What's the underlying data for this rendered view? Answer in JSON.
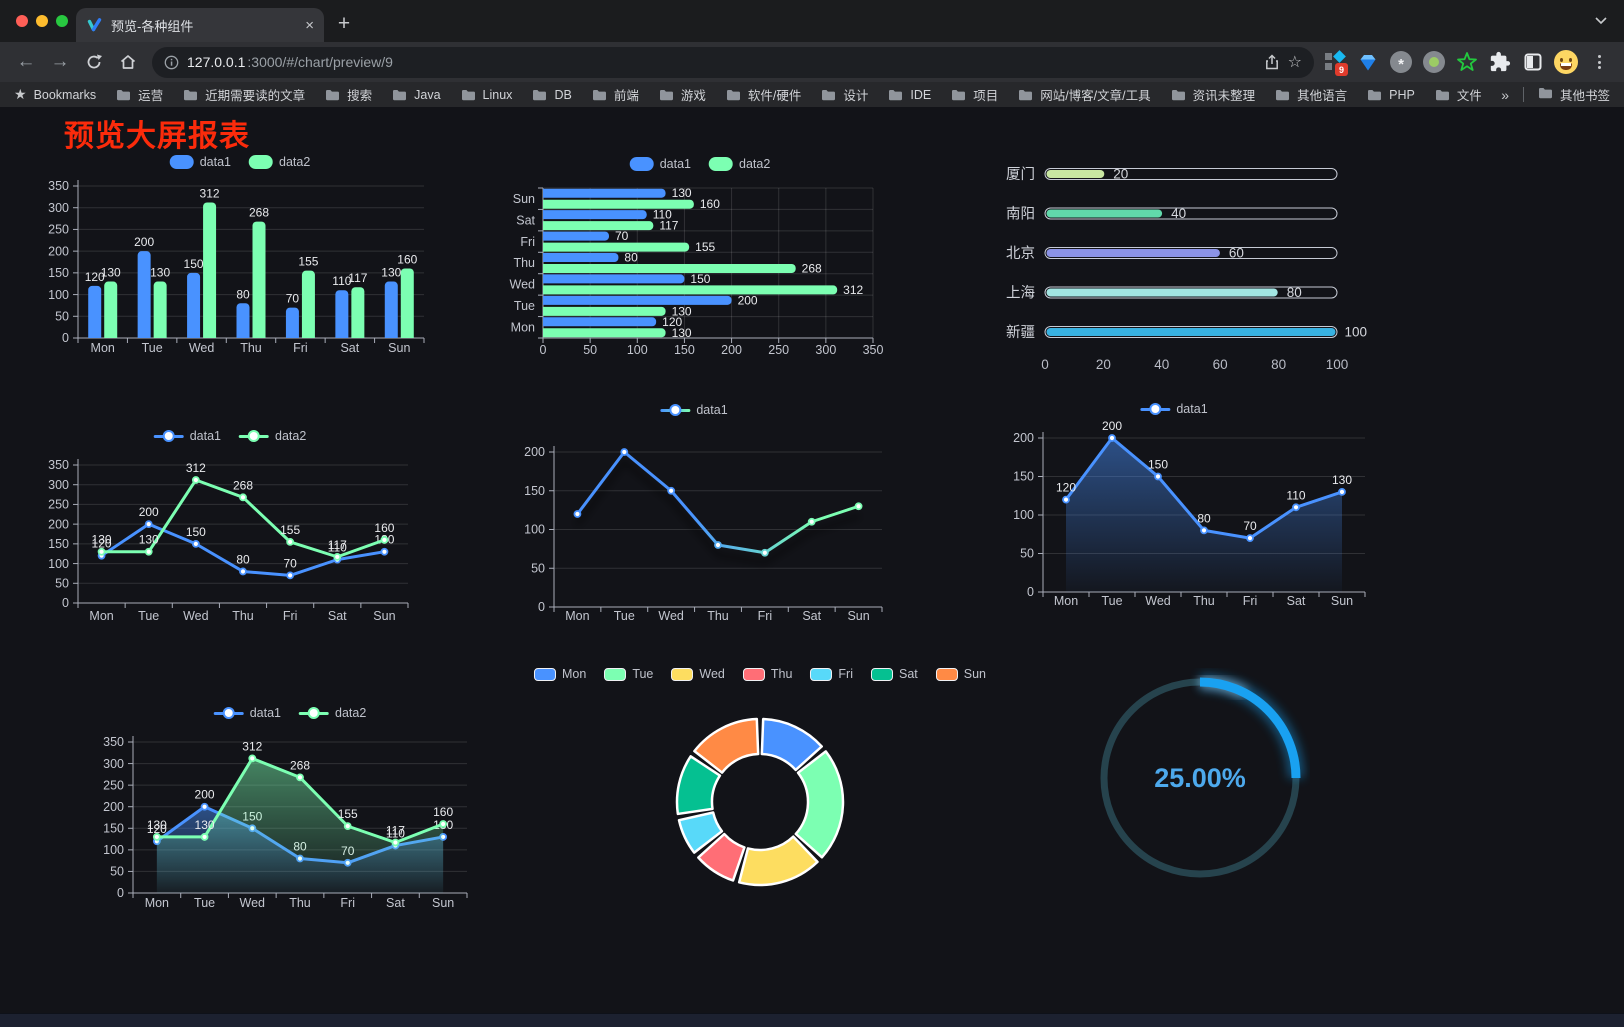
{
  "browser": {
    "window_controls": [
      "close",
      "minimize",
      "zoom"
    ],
    "tab": {
      "title": "预览-各种组件",
      "close_glyph": "×"
    },
    "new_tab_button": "+",
    "url": {
      "host": "127.0.0.1",
      "rest": ":3000/#/chart/preview/9"
    },
    "extension_badge": "9",
    "bookmarks_bar": {
      "bookmarks_label": "Bookmarks",
      "folders": [
        "运营",
        "近期需要读的文章",
        "搜索",
        "Java",
        "Linux",
        "DB",
        "前端",
        "游戏",
        "软件/硬件",
        "设计",
        "IDE",
        "项目",
        "网站/博客/文章/工具",
        "资讯未整理",
        "其他语言",
        "PHP",
        "文件服务器"
      ],
      "overflow_chevron": "»",
      "other_bookmarks": "其他书签"
    }
  },
  "page": {
    "title": "预览大屏报表",
    "title_color": "#fb2b0b"
  },
  "colors": {
    "series_blue": "#4992ff",
    "series_green": "#7cffb2",
    "gauge_blue": "#19a1f1"
  },
  "chart_data": [
    {
      "id": "bar-vertical",
      "type": "bar",
      "categories": [
        "Mon",
        "Tue",
        "Wed",
        "Thu",
        "Fri",
        "Sat",
        "Sun"
      ],
      "series": [
        {
          "name": "data1",
          "color": "#4992ff",
          "values": [
            120,
            200,
            150,
            80,
            70,
            110,
            130
          ]
        },
        {
          "name": "data2",
          "color": "#7cffb2",
          "values": [
            130,
            130,
            312,
            268,
            155,
            117,
            160
          ]
        }
      ],
      "ylim": [
        0,
        350
      ],
      "ytick": 50,
      "legend_position": "top",
      "grid": true,
      "value_labels": true
    },
    {
      "id": "bar-horizontal",
      "type": "bar",
      "orientation": "horizontal",
      "categories": [
        "Mon",
        "Tue",
        "Wed",
        "Thu",
        "Fri",
        "Sat",
        "Sun"
      ],
      "series": [
        {
          "name": "data1",
          "color": "#4992ff",
          "values": [
            120,
            200,
            150,
            80,
            70,
            110,
            130
          ]
        },
        {
          "name": "data2",
          "color": "#7cffb2",
          "values": [
            130,
            130,
            312,
            268,
            155,
            117,
            160
          ]
        }
      ],
      "xlim": [
        0,
        350
      ],
      "xtick": 50,
      "legend_position": "top",
      "value_labels": true
    },
    {
      "id": "progress-bars",
      "type": "bar",
      "subtype": "progress",
      "items": [
        {
          "label": "厦门",
          "value": 20,
          "color": "#c9e7a2"
        },
        {
          "label": "南阳",
          "value": 40,
          "color": "#61d9ab"
        },
        {
          "label": "北京",
          "value": 60,
          "color": "#8b93e6"
        },
        {
          "label": "上海",
          "value": 80,
          "color": "#a3e6e3"
        },
        {
          "label": "新疆",
          "value": 100,
          "color": "#38b2e2"
        }
      ],
      "xlim": [
        0,
        100
      ],
      "xticks": [
        0,
        20,
        40,
        60,
        80,
        100
      ]
    },
    {
      "id": "line-two-series",
      "type": "line",
      "categories": [
        "Mon",
        "Tue",
        "Wed",
        "Thu",
        "Fri",
        "Sat",
        "Sun"
      ],
      "series": [
        {
          "name": "data1",
          "color": "#4992ff",
          "values": [
            120,
            200,
            150,
            80,
            70,
            110,
            130
          ]
        },
        {
          "name": "data2",
          "color": "#7cffb2",
          "values": [
            130,
            130,
            312,
            268,
            155,
            117,
            160
          ]
        }
      ],
      "ylim": [
        0,
        350
      ],
      "ytick": 50,
      "legend_position": "top",
      "value_labels": true
    },
    {
      "id": "line-gradient",
      "type": "line",
      "categories": [
        "Mon",
        "Tue",
        "Wed",
        "Thu",
        "Fri",
        "Sat",
        "Sun"
      ],
      "series": [
        {
          "name": "data1",
          "gradient": [
            "#4992ff",
            "#7cffb2"
          ],
          "values": [
            120,
            200,
            150,
            80,
            70,
            110,
            130
          ],
          "shadow": true
        }
      ],
      "ylim": [
        0,
        200
      ],
      "ytick": 50,
      "legend_position": "top",
      "value_labels": false
    },
    {
      "id": "line-area",
      "type": "area",
      "categories": [
        "Mon",
        "Tue",
        "Wed",
        "Thu",
        "Fri",
        "Sat",
        "Sun"
      ],
      "series": [
        {
          "name": "data1",
          "color": "#4992ff",
          "values": [
            120,
            200,
            150,
            80,
            70,
            110,
            130
          ],
          "area": true
        }
      ],
      "ylim": [
        0,
        200
      ],
      "ytick": 50,
      "legend_position": "top",
      "value_labels": true
    },
    {
      "id": "line-area-two",
      "type": "area",
      "categories": [
        "Mon",
        "Tue",
        "Wed",
        "Thu",
        "Fri",
        "Sat",
        "Sun"
      ],
      "series": [
        {
          "name": "data1",
          "color": "#4992ff",
          "values": [
            120,
            200,
            150,
            80,
            70,
            110,
            130
          ],
          "area": true
        },
        {
          "name": "data2",
          "color": "#7cffb2",
          "values": [
            130,
            130,
            312,
            268,
            155,
            117,
            160
          ],
          "area": true
        }
      ],
      "ylim": [
        0,
        350
      ],
      "ytick": 50,
      "legend_position": "top",
      "value_labels": true
    },
    {
      "id": "donut",
      "type": "pie",
      "inner_radius_ratio": 0.58,
      "items": [
        {
          "label": "Mon",
          "value": 120,
          "color": "#4992ff"
        },
        {
          "label": "Tue",
          "value": 200,
          "color": "#7cffb2"
        },
        {
          "label": "Wed",
          "value": 150,
          "color": "#fddd60"
        },
        {
          "label": "Thu",
          "value": 80,
          "color": "#ff6e76"
        },
        {
          "label": "Fri",
          "value": 70,
          "color": "#58d9f9"
        },
        {
          "label": "Sat",
          "value": 110,
          "color": "#05c091"
        },
        {
          "label": "Sun",
          "value": 130,
          "color": "#ff8a45"
        }
      ],
      "legend_position": "top"
    },
    {
      "id": "gauge",
      "type": "gauge",
      "value": 25,
      "display": "25.00%",
      "color": "#19a1f1",
      "range": [
        0,
        100
      ]
    }
  ]
}
